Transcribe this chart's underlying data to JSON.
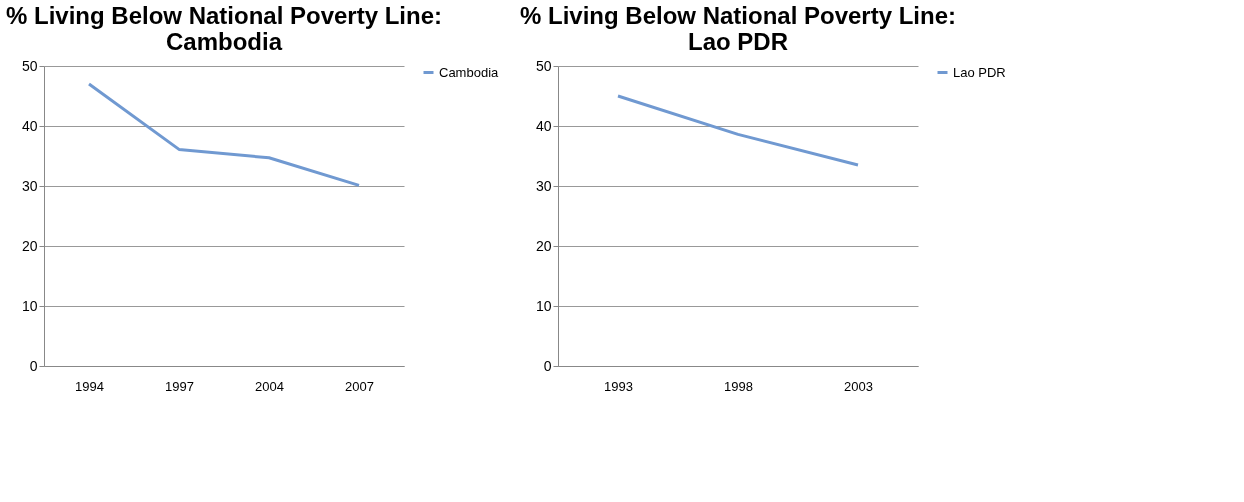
{
  "chart_data": [
    {
      "type": "line",
      "title": "% Living Below National Poverty Line:\nCambodia",
      "categories": [
        "1994",
        "1997",
        "2004",
        "2007"
      ],
      "series": [
        {
          "name": "Cambodia",
          "color": "#7099d1",
          "values": [
            47,
            36.1,
            34.7,
            30.1
          ]
        }
      ],
      "ylim": [
        0,
        50
      ],
      "yticks": [
        0,
        10,
        20,
        30,
        40,
        50
      ],
      "grid": "y",
      "legend": "right",
      "marker": "none",
      "line_style": "solid"
    },
    {
      "type": "line",
      "title": "% Living Below National Poverty Line:\nLao PDR",
      "categories": [
        "1993",
        "1998",
        "2003"
      ],
      "series": [
        {
          "name": "Lao PDR",
          "color": "#7099d1",
          "values": [
            45,
            38.6,
            33.5
          ]
        }
      ],
      "ylim": [
        0,
        50
      ],
      "yticks": [
        0,
        10,
        20,
        30,
        40,
        50
      ],
      "grid": "y",
      "legend": "right",
      "marker": "none",
      "line_style": "solid"
    }
  ]
}
